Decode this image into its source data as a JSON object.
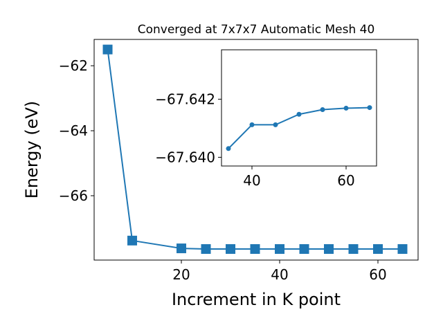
{
  "chart_data": [
    {
      "type": "line",
      "title": "Converged at 7x7x7 Automatic Mesh 40",
      "x_label": "Increment in K point",
      "y_label": "Energy (eV)",
      "x": [
        5,
        10,
        20,
        25,
        30,
        35,
        40,
        45,
        50,
        55,
        60,
        65
      ],
      "series": [
        {
          "color": "#1f77b4",
          "marker": "square",
          "values": [
            -61.5,
            -67.38,
            -67.62,
            -67.64,
            -67.64,
            -67.64,
            -67.64,
            -67.64,
            -67.64,
            -67.64,
            -67.64,
            -67.64
          ]
        }
      ],
      "xlim": [
        2.25,
        68.17
      ],
      "ylim": [
        -67.98,
        -61.19
      ],
      "xticks": [
        20,
        40,
        60
      ],
      "yticks": [
        {
          "value": -62,
          "label": "−62"
        },
        {
          "value": -64,
          "label": "−64"
        },
        {
          "value": -66,
          "label": "−66"
        }
      ]
    },
    {
      "type": "line",
      "x": [
        35,
        40,
        45,
        50,
        55,
        60,
        65
      ],
      "series": [
        {
          "color": "#1f77b4",
          "marker": "circle",
          "values": [
            -67.6403,
            -67.64112,
            -67.64112,
            -67.64148,
            -67.64164,
            -67.64169,
            -67.64171
          ]
        }
      ],
      "xlim": [
        33.53,
        66.47
      ],
      "ylim": [
        -67.6397,
        -67.6437
      ],
      "xticks": [
        40,
        60
      ],
      "yticks": [
        {
          "value": -67.642,
          "label": "−67.642"
        },
        {
          "value": -67.64,
          "label": "−67.640"
        }
      ]
    }
  ]
}
